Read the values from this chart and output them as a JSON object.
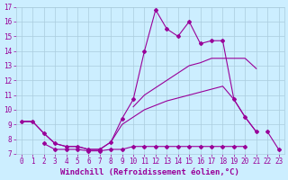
{
  "xlabel": "Windchill (Refroidissement éolien,°C)",
  "background_color": "#cceeff",
  "line_color": "#990099",
  "xlim": [
    -0.5,
    23.5
  ],
  "ylim": [
    7,
    17
  ],
  "yticks": [
    7,
    8,
    9,
    10,
    11,
    12,
    13,
    14,
    15,
    16,
    17
  ],
  "xticks": [
    0,
    1,
    2,
    3,
    4,
    5,
    6,
    7,
    8,
    9,
    10,
    11,
    12,
    13,
    14,
    15,
    16,
    17,
    18,
    19,
    20,
    21,
    22,
    23
  ],
  "grid_color": "#aaccdd",
  "tick_fontsize": 5.5,
  "label_fontsize": 6.5,
  "series1_x": [
    0,
    1,
    2,
    3,
    4,
    5,
    6,
    7,
    8,
    9,
    10,
    11,
    12,
    13,
    14,
    15,
    16,
    17,
    18,
    19,
    20,
    21,
    22,
    23
  ],
  "series1_y": [
    9.2,
    9.2,
    8.4,
    7.7,
    7.5,
    7.5,
    7.3,
    7.3,
    7.8,
    9.4,
    10.7,
    14.0,
    16.8,
    15.5,
    15.0,
    16.0,
    14.5,
    14.7,
    14.7,
    10.7,
    9.5,
    8.5,
    null,
    null
  ],
  "series2_x": [
    0,
    1,
    2,
    3,
    4,
    5,
    6,
    7,
    8,
    9,
    10,
    11,
    12,
    13,
    14,
    15,
    16,
    17,
    18,
    19,
    20,
    21,
    22,
    23
  ],
  "series2_y": [
    9.2,
    9.2,
    null,
    null,
    null,
    null,
    null,
    null,
    null,
    null,
    10.2,
    11.0,
    11.5,
    12.0,
    12.5,
    13.0,
    13.2,
    13.5,
    13.5,
    13.5,
    13.5,
    12.8,
    null,
    null
  ],
  "series3_x": [
    0,
    1,
    2,
    3,
    4,
    5,
    6,
    7,
    8,
    9,
    10,
    11,
    12,
    13,
    14,
    15,
    16,
    17,
    18,
    19,
    20,
    21,
    22,
    23
  ],
  "series3_y": [
    9.2,
    9.2,
    8.4,
    7.7,
    7.5,
    7.5,
    7.3,
    7.3,
    7.8,
    9.0,
    9.5,
    10.0,
    10.3,
    10.6,
    10.8,
    11.0,
    11.2,
    11.4,
    11.6,
    10.7,
    9.5,
    8.5,
    null,
    null
  ],
  "series4_x": [
    0,
    1,
    2,
    3,
    4,
    5,
    6,
    7,
    8,
    9,
    10,
    11,
    12,
    13,
    14,
    15,
    16,
    17,
    18,
    19,
    20,
    21,
    22,
    23
  ],
  "series4_y": [
    null,
    null,
    7.7,
    7.3,
    7.3,
    7.3,
    7.2,
    7.2,
    7.3,
    7.3,
    7.5,
    7.5,
    7.5,
    7.5,
    7.5,
    7.5,
    7.5,
    7.5,
    7.5,
    7.5,
    7.5,
    null,
    8.5,
    7.3
  ]
}
